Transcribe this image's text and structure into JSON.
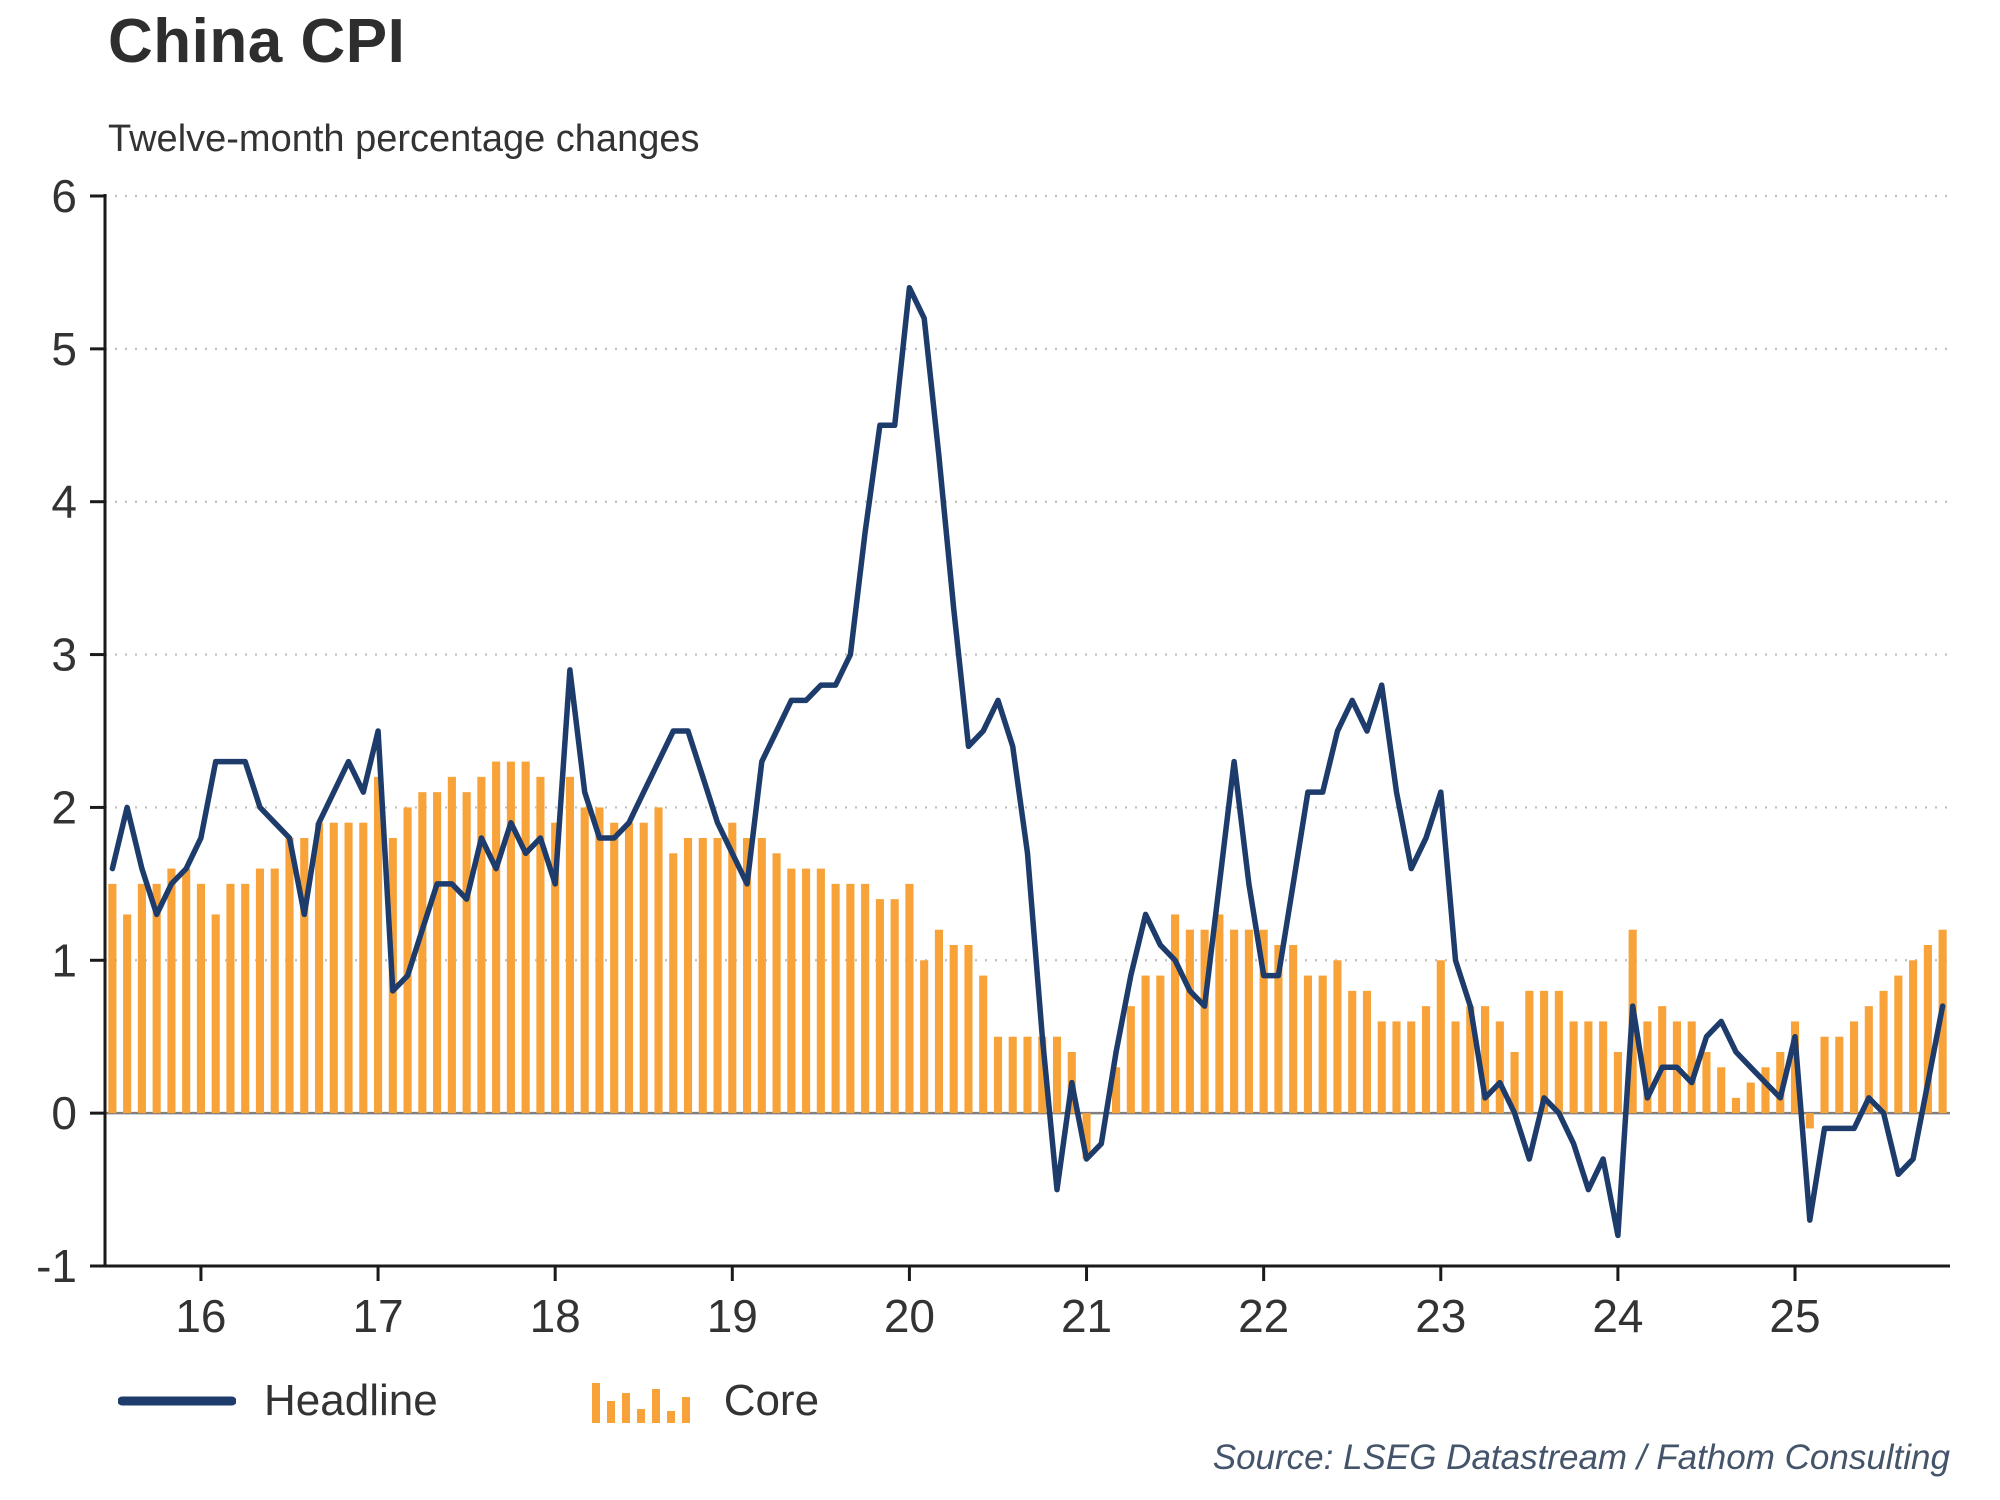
{
  "title": "China CPI",
  "subtitle": "Twelve-month percentage changes",
  "source": "Source: LSEG Datastream / Fathom Consulting",
  "legend": {
    "items": [
      {
        "label": "Headline",
        "swatch": "line"
      },
      {
        "label": "Core",
        "swatch": "bars"
      }
    ]
  },
  "colors": {
    "headline": "#1d3c6b",
    "core": "#f8a33a",
    "grid": "#bfbfbf",
    "zero_line": "#7f7f7f",
    "axis": "#1a1a1a",
    "text": "#333333",
    "source_text": "#44546a"
  },
  "chart_data": {
    "type": "line+bar",
    "title": "China CPI",
    "subtitle": "Twelve-month percentage changes",
    "xlabel": "",
    "ylabel": "",
    "ylim": [
      -1,
      6
    ],
    "yticks": [
      -1,
      0,
      1,
      2,
      3,
      4,
      5,
      6
    ],
    "x_tick_labels": [
      "16",
      "17",
      "18",
      "19",
      "20",
      "21",
      "22",
      "23",
      "24",
      "25"
    ],
    "grid": "horizontal dotted, solid zero line",
    "legend_position": "bottom-left",
    "x": [
      "2015-07",
      "2015-08",
      "2015-09",
      "2015-10",
      "2015-11",
      "2015-12",
      "2016-01",
      "2016-02",
      "2016-03",
      "2016-04",
      "2016-05",
      "2016-06",
      "2016-07",
      "2016-08",
      "2016-09",
      "2016-10",
      "2016-11",
      "2016-12",
      "2017-01",
      "2017-02",
      "2017-03",
      "2017-04",
      "2017-05",
      "2017-06",
      "2017-07",
      "2017-08",
      "2017-09",
      "2017-10",
      "2017-11",
      "2017-12",
      "2018-01",
      "2018-02",
      "2018-03",
      "2018-04",
      "2018-05",
      "2018-06",
      "2018-07",
      "2018-08",
      "2018-09",
      "2018-10",
      "2018-11",
      "2018-12",
      "2019-01",
      "2019-02",
      "2019-03",
      "2019-04",
      "2019-05",
      "2019-06",
      "2019-07",
      "2019-08",
      "2019-09",
      "2019-10",
      "2019-11",
      "2019-12",
      "2020-01",
      "2020-02",
      "2020-03",
      "2020-04",
      "2020-05",
      "2020-06",
      "2020-07",
      "2020-08",
      "2020-09",
      "2020-10",
      "2020-11",
      "2020-12",
      "2021-01",
      "2021-02",
      "2021-03",
      "2021-04",
      "2021-05",
      "2021-06",
      "2021-07",
      "2021-08",
      "2021-09",
      "2021-10",
      "2021-11",
      "2021-12",
      "2022-01",
      "2022-02",
      "2022-03",
      "2022-04",
      "2022-05",
      "2022-06",
      "2022-07",
      "2022-08",
      "2022-09",
      "2022-10",
      "2022-11",
      "2022-12",
      "2023-01",
      "2023-02",
      "2023-03",
      "2023-04",
      "2023-05",
      "2023-06",
      "2023-07",
      "2023-08",
      "2023-09",
      "2023-10",
      "2023-11",
      "2023-12",
      "2024-01",
      "2024-02",
      "2024-03",
      "2024-04",
      "2024-05",
      "2024-06",
      "2024-07",
      "2024-08",
      "2024-09",
      "2024-10",
      "2024-11",
      "2024-12",
      "2025-01",
      "2025-02",
      "2025-03",
      "2025-04",
      "2025-05",
      "2025-06",
      "2025-07",
      "2025-08",
      "2025-09",
      "2025-10",
      "2025-11"
    ],
    "series": [
      {
        "name": "Headline",
        "type": "line",
        "values": [
          1.6,
          2.0,
          1.6,
          1.3,
          1.5,
          1.6,
          1.8,
          2.3,
          2.3,
          2.3,
          2.0,
          1.9,
          1.8,
          1.3,
          1.9,
          2.1,
          2.3,
          2.1,
          2.5,
          0.8,
          0.9,
          1.2,
          1.5,
          1.5,
          1.4,
          1.8,
          1.6,
          1.9,
          1.7,
          1.8,
          1.5,
          2.9,
          2.1,
          1.8,
          1.8,
          1.9,
          2.1,
          2.3,
          2.5,
          2.5,
          2.2,
          1.9,
          1.7,
          1.5,
          2.3,
          2.5,
          2.7,
          2.7,
          2.8,
          2.8,
          3.0,
          3.8,
          4.5,
          4.5,
          5.4,
          5.2,
          4.3,
          3.3,
          2.4,
          2.5,
          2.7,
          2.4,
          1.7,
          0.5,
          -0.5,
          0.2,
          -0.3,
          -0.2,
          0.4,
          0.9,
          1.3,
          1.1,
          1.0,
          0.8,
          0.7,
          1.5,
          2.3,
          1.5,
          0.9,
          0.9,
          1.5,
          2.1,
          2.1,
          2.5,
          2.7,
          2.5,
          2.8,
          2.1,
          1.6,
          1.8,
          2.1,
          1.0,
          0.7,
          0.1,
          0.2,
          0.0,
          -0.3,
          0.1,
          0.0,
          -0.2,
          -0.5,
          -0.3,
          -0.8,
          0.7,
          0.1,
          0.3,
          0.3,
          0.2,
          0.5,
          0.6,
          0.4,
          0.3,
          0.2,
          0.1,
          0.5,
          -0.7,
          -0.1,
          -0.1,
          -0.1,
          0.1,
          0.0,
          -0.4,
          -0.3,
          0.2,
          0.7
        ]
      },
      {
        "name": "Core",
        "type": "bar",
        "values": [
          1.5,
          1.3,
          1.5,
          1.5,
          1.6,
          1.6,
          1.5,
          1.3,
          1.5,
          1.5,
          1.6,
          1.6,
          1.8,
          1.8,
          1.9,
          1.9,
          1.9,
          1.9,
          2.2,
          1.8,
          2.0,
          2.1,
          2.1,
          2.2,
          2.1,
          2.2,
          2.3,
          2.3,
          2.3,
          2.2,
          1.9,
          2.2,
          2.0,
          2.0,
          1.9,
          1.9,
          1.9,
          2.0,
          1.7,
          1.8,
          1.8,
          1.8,
          1.9,
          1.8,
          1.8,
          1.7,
          1.6,
          1.6,
          1.6,
          1.5,
          1.5,
          1.5,
          1.4,
          1.4,
          1.5,
          1.0,
          1.2,
          1.1,
          1.1,
          0.9,
          0.5,
          0.5,
          0.5,
          0.5,
          0.5,
          0.4,
          -0.3,
          0.0,
          0.3,
          0.7,
          0.9,
          0.9,
          1.3,
          1.2,
          1.2,
          1.3,
          1.2,
          1.2,
          1.2,
          1.1,
          1.1,
          0.9,
          0.9,
          1.0,
          0.8,
          0.8,
          0.6,
          0.6,
          0.6,
          0.7,
          1.0,
          0.6,
          0.7,
          0.7,
          0.6,
          0.4,
          0.8,
          0.8,
          0.8,
          0.6,
          0.6,
          0.6,
          0.4,
          1.2,
          0.6,
          0.7,
          0.6,
          0.6,
          0.4,
          0.3,
          0.1,
          0.2,
          0.3,
          0.4,
          0.6,
          -0.1,
          0.5,
          0.5,
          0.6,
          0.7,
          0.8,
          0.9,
          1.0,
          1.1,
          1.2
        ]
      }
    ]
  }
}
